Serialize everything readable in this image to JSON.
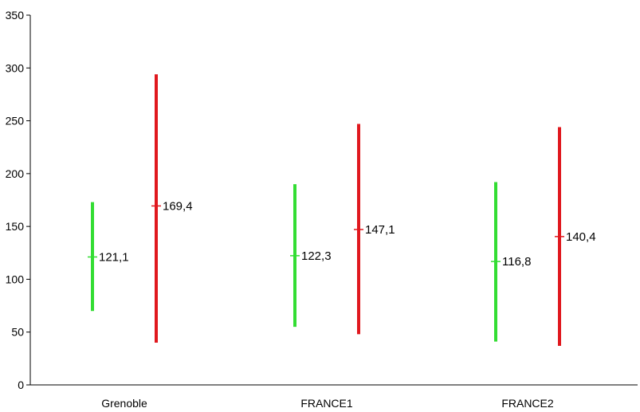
{
  "chart_data": {
    "type": "range",
    "categories": [
      "Grenoble",
      "FRANCE1",
      "FRANCE2"
    ],
    "ylim": [
      0,
      350
    ],
    "yticks": [
      0,
      50,
      100,
      150,
      200,
      250,
      300,
      350
    ],
    "grid": false,
    "series": [
      {
        "color": "#33dd33",
        "low": [
          70,
          55,
          41
        ],
        "high": [
          173,
          190,
          192
        ],
        "mid": [
          121.1,
          122.3,
          116.8
        ],
        "labels": [
          "121,1",
          "122,3",
          "116,8"
        ]
      },
      {
        "color": "#e0181e",
        "low": [
          40,
          48,
          37
        ],
        "high": [
          294,
          247,
          244
        ],
        "mid": [
          169.4,
          147.1,
          140.4
        ],
        "labels": [
          "169,4",
          "147,1",
          "140,4"
        ]
      }
    ]
  }
}
